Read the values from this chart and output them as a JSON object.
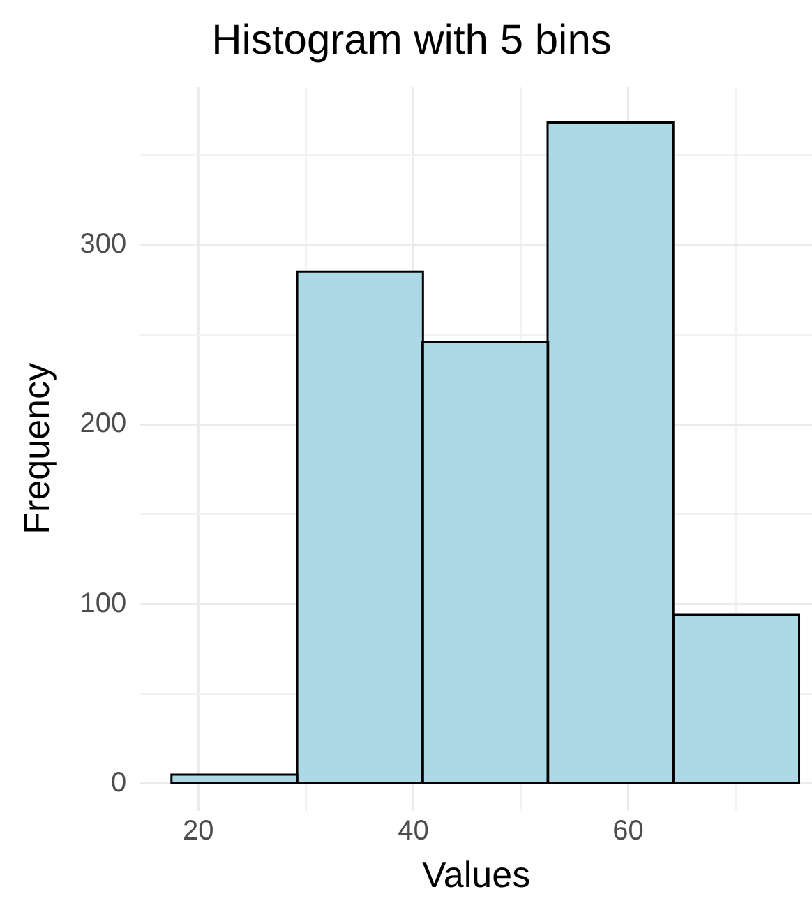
{
  "chart_data": {
    "type": "histogram",
    "title": "Histogram with 5 bins",
    "xlabel": "Values",
    "ylabel": "Frequency",
    "bins": [
      17.5,
      29.2,
      40.9,
      52.5,
      64.2,
      75.9
    ],
    "values": [
      5,
      285,
      246,
      368,
      94
    ],
    "color": "#add8e6",
    "xlim": [
      14.6,
      77.1
    ],
    "xticks": [
      20,
      {
        "value": 30,
        "label": null
      },
      40,
      {
        "value": 50,
        "label": null
      },
      60,
      {
        "value": 70,
        "label": null
      }
    ],
    "ylim": [
      -15,
      388
    ],
    "yticks": [
      0,
      {
        "value": 50,
        "label": null
      },
      100,
      {
        "value": 150,
        "label": null
      },
      200,
      {
        "value": 250,
        "label": null
      },
      300,
      {
        "value": 350,
        "label": null
      }
    ],
    "grid": true
  }
}
